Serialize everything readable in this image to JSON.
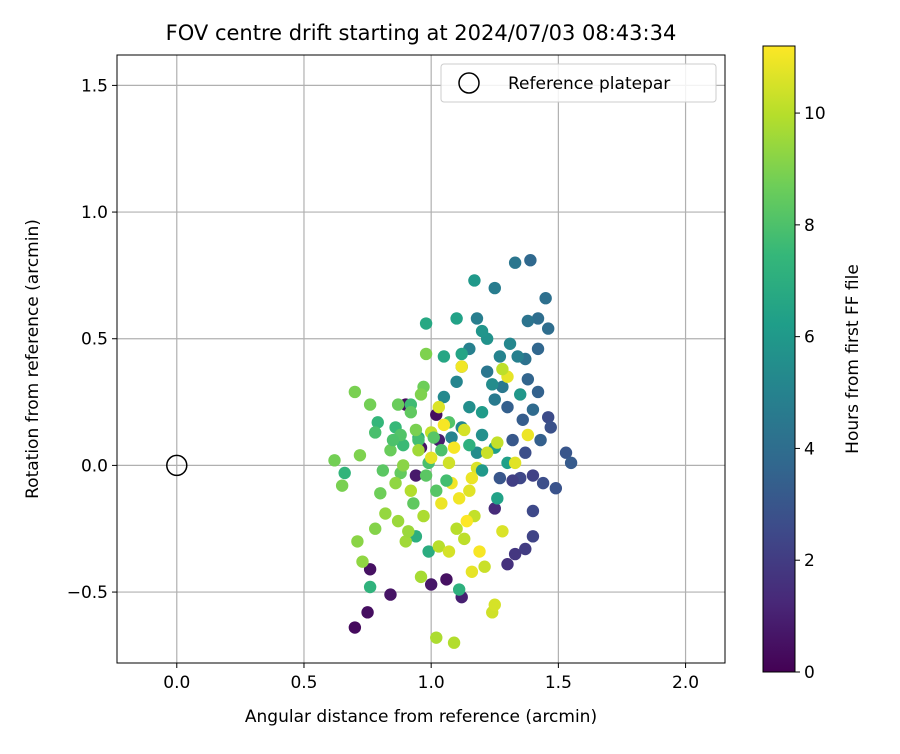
{
  "chart_data": {
    "type": "scatter",
    "title": "FOV centre drift starting at 2024/07/03 08:43:34",
    "xlabel": "Angular distance from reference (arcmin)",
    "ylabel": "Rotation from reference (arcmin)",
    "xlim": [
      -0.235,
      2.155
    ],
    "ylim": [
      -0.78,
      1.62
    ],
    "xticks": [
      0.0,
      0.5,
      1.0,
      1.5,
      2.0
    ],
    "xtick_labels": [
      "0.0",
      "0.5",
      "1.0",
      "1.5",
      "2.0"
    ],
    "yticks": [
      -0.5,
      0.0,
      0.5,
      1.0,
      1.5
    ],
    "ytick_labels": [
      "−0.5",
      "0.0",
      "0.5",
      "1.0",
      "1.5"
    ],
    "grid": true,
    "legend": {
      "label": "Reference platepar",
      "position": "top-right"
    },
    "reference_point": {
      "x": 0.0,
      "y": 0.0
    },
    "colorbar": {
      "label": "Hours from first FF file",
      "range": [
        0,
        11.2
      ],
      "ticks": [
        0,
        2,
        4,
        6,
        8,
        10
      ],
      "tick_labels": [
        "0",
        "2",
        "4",
        "6",
        "8",
        "10"
      ],
      "colormap": [
        "#440154",
        "#482878",
        "#3e4989",
        "#31688e",
        "#26828e",
        "#1f9e89",
        "#35b779",
        "#6ece58",
        "#b5de2b",
        "#fde725"
      ]
    },
    "points": [
      [
        0.7,
        -0.64,
        0.3
      ],
      [
        0.75,
        -0.58,
        0.4
      ],
      [
        0.76,
        -0.41,
        0.5
      ],
      [
        0.84,
        -0.51,
        0.6
      ],
      [
        0.9,
        0.24,
        0.3
      ],
      [
        0.94,
        -0.04,
        0.8
      ],
      [
        0.96,
        0.07,
        0.6
      ],
      [
        1.0,
        -0.47,
        0.7
      ],
      [
        1.06,
        -0.45,
        0.5
      ],
      [
        1.03,
        0.1,
        0.9
      ],
      [
        1.02,
        0.2,
        0.4
      ],
      [
        1.12,
        -0.52,
        1.0
      ],
      [
        1.25,
        -0.17,
        1.4
      ],
      [
        1.3,
        -0.39,
        1.6
      ],
      [
        1.33,
        -0.35,
        1.8
      ],
      [
        1.37,
        -0.33,
        2.0
      ],
      [
        1.4,
        -0.28,
        2.3
      ],
      [
        1.35,
        -0.05,
        2.4
      ],
      [
        1.4,
        -0.18,
        2.5
      ],
      [
        1.44,
        -0.07,
        2.7
      ],
      [
        1.49,
        -0.09,
        2.9
      ],
      [
        1.4,
        -0.04,
        2.2
      ],
      [
        1.46,
        0.19,
        2.6
      ],
      [
        1.47,
        0.15,
        2.8
      ],
      [
        1.53,
        0.05,
        3.0
      ],
      [
        1.55,
        0.01,
        3.2
      ],
      [
        1.32,
        0.1,
        3.1
      ],
      [
        1.36,
        0.18,
        3.3
      ],
      [
        1.3,
        0.23,
        3.4
      ],
      [
        1.42,
        0.29,
        3.5
      ],
      [
        1.38,
        0.34,
        3.6
      ],
      [
        1.39,
        0.81,
        3.8
      ],
      [
        1.42,
        0.46,
        3.7
      ],
      [
        1.42,
        0.58,
        4.0
      ],
      [
        1.45,
        0.66,
        4.1
      ],
      [
        1.46,
        0.54,
        4.0
      ],
      [
        1.38,
        0.57,
        4.3
      ],
      [
        1.33,
        0.8,
        4.4
      ],
      [
        1.37,
        0.42,
        4.2
      ],
      [
        1.28,
        0.31,
        4.5
      ],
      [
        1.25,
        0.26,
        4.6
      ],
      [
        1.22,
        0.37,
        4.4
      ],
      [
        1.25,
        0.7,
        4.7
      ],
      [
        1.18,
        0.58,
        4.8
      ],
      [
        1.15,
        0.46,
        4.9
      ],
      [
        1.12,
        0.39,
        5.0
      ],
      [
        1.1,
        0.33,
        5.1
      ],
      [
        1.12,
        0.15,
        5.2
      ],
      [
        1.05,
        0.27,
        5.3
      ],
      [
        1.08,
        0.11,
        5.0
      ],
      [
        1.18,
        0.05,
        5.4
      ],
      [
        1.15,
        0.23,
        5.5
      ],
      [
        1.2,
        0.12,
        5.6
      ],
      [
        1.22,
        0.5,
        5.7
      ],
      [
        1.2,
        0.53,
        5.8
      ],
      [
        1.17,
        0.73,
        6.0
      ],
      [
        1.2,
        0.21,
        6.1
      ],
      [
        1.25,
        0.07,
        6.2
      ],
      [
        1.3,
        0.01,
        6.3
      ],
      [
        1.26,
        -0.13,
        6.4
      ],
      [
        1.12,
        0.44,
        6.5
      ],
      [
        1.1,
        0.58,
        6.4
      ],
      [
        1.05,
        0.43,
        6.6
      ],
      [
        0.98,
        0.56,
        6.7
      ],
      [
        0.95,
        0.11,
        6.8
      ],
      [
        0.99,
        -0.34,
        6.9
      ],
      [
        0.94,
        -0.28,
        7.0
      ],
      [
        1.11,
        -0.49,
        7.1
      ],
      [
        0.76,
        -0.48,
        7.2
      ],
      [
        0.66,
        -0.03,
        7.3
      ],
      [
        0.79,
        0.17,
        7.4
      ],
      [
        0.86,
        0.15,
        7.5
      ],
      [
        0.89,
        0.08,
        7.6
      ],
      [
        0.92,
        0.24,
        7.7
      ],
      [
        0.95,
        0.1,
        7.8
      ],
      [
        0.99,
        0.01,
        7.9
      ],
      [
        1.04,
        0.06,
        8.0
      ],
      [
        1.07,
        0.17,
        8.1
      ],
      [
        1.02,
        -0.1,
        8.2
      ],
      [
        0.98,
        -0.04,
        8.3
      ],
      [
        0.93,
        -0.15,
        8.4
      ],
      [
        0.88,
        -0.03,
        8.5
      ],
      [
        0.84,
        0.06,
        8.6
      ],
      [
        0.8,
        -0.11,
        8.7
      ],
      [
        0.76,
        0.24,
        8.8
      ],
      [
        0.7,
        0.29,
        8.9
      ],
      [
        0.62,
        0.02,
        8.8
      ],
      [
        0.65,
        -0.08,
        8.9
      ],
      [
        0.72,
        0.04,
        9.0
      ],
      [
        0.78,
        -0.25,
        9.1
      ],
      [
        0.71,
        -0.3,
        9.2
      ],
      [
        0.73,
        -0.38,
        9.3
      ],
      [
        0.82,
        -0.19,
        9.4
      ],
      [
        0.87,
        -0.22,
        9.5
      ],
      [
        0.9,
        -0.3,
        9.6
      ],
      [
        0.96,
        -0.44,
        9.7
      ],
      [
        1.02,
        -0.68,
        9.8
      ],
      [
        1.09,
        -0.7,
        9.9
      ],
      [
        1.1,
        -0.25,
        10.0
      ],
      [
        1.13,
        -0.29,
        10.1
      ],
      [
        1.17,
        -0.2,
        10.2
      ],
      [
        1.21,
        -0.4,
        10.3
      ],
      [
        1.24,
        -0.58,
        10.4
      ],
      [
        1.25,
        -0.55,
        10.5
      ],
      [
        1.28,
        -0.26,
        10.6
      ],
      [
        1.33,
        0.01,
        10.7
      ],
      [
        1.3,
        0.35,
        10.8
      ],
      [
        1.38,
        0.12,
        10.9
      ],
      [
        1.12,
        0.39,
        11.0
      ],
      [
        1.05,
        0.16,
        11.1
      ],
      [
        1.08,
        -0.07,
        11.0
      ],
      [
        1.04,
        -0.15,
        10.9
      ],
      [
        1.0,
        0.03,
        10.8
      ],
      [
        1.15,
        -0.1,
        10.7
      ],
      [
        1.18,
        -0.01,
        10.6
      ],
      [
        1.13,
        0.14,
        10.5
      ],
      [
        1.07,
        0.01,
        10.4
      ],
      [
        1.22,
        0.05,
        10.3
      ],
      [
        1.26,
        0.09,
        10.2
      ],
      [
        1.28,
        0.38,
        10.1
      ],
      [
        0.98,
        0.44,
        9.0
      ],
      [
        0.97,
        0.31,
        8.7
      ],
      [
        0.92,
        0.21,
        8.4
      ],
      [
        0.88,
        0.12,
        8.1
      ],
      [
        0.86,
        -0.07,
        9.3
      ],
      [
        0.91,
        -0.26,
        9.5
      ],
      [
        0.97,
        -0.2,
        9.8
      ],
      [
        1.03,
        -0.32,
        10.0
      ],
      [
        1.07,
        -0.34,
        10.5
      ],
      [
        1.16,
        -0.42,
        10.8
      ],
      [
        1.19,
        -0.34,
        11.1
      ],
      [
        1.14,
        -0.22,
        11.2
      ],
      [
        1.11,
        -0.13,
        11.0
      ],
      [
        1.16,
        -0.05,
        10.9
      ],
      [
        1.09,
        0.07,
        11.1
      ],
      [
        1.03,
        0.23,
        10.6
      ],
      [
        1.0,
        0.13,
        10.2
      ],
      [
        0.95,
        0.06,
        9.6
      ],
      [
        0.92,
        -0.1,
        9.9
      ],
      [
        0.89,
        0.0,
        9.2
      ],
      [
        1.34,
        0.43,
        4.9
      ],
      [
        1.31,
        0.48,
        5.2
      ],
      [
        1.27,
        0.43,
        5.0
      ],
      [
        1.24,
        0.32,
        5.4
      ],
      [
        1.35,
        0.28,
        5.9
      ],
      [
        1.4,
        0.22,
        3.9
      ],
      [
        1.43,
        0.1,
        3.4
      ],
      [
        1.37,
        0.05,
        2.7
      ],
      [
        1.32,
        -0.06,
        2.1
      ],
      [
        1.27,
        -0.05,
        3.0
      ],
      [
        1.2,
        -0.02,
        6.0
      ],
      [
        1.15,
        0.08,
        7.1
      ],
      [
        1.06,
        -0.06,
        7.8
      ],
      [
        1.01,
        0.11,
        8.2
      ],
      [
        0.94,
        0.14,
        8.9
      ],
      [
        0.85,
        0.1,
        8.0
      ],
      [
        0.81,
        -0.02,
        8.3
      ],
      [
        0.78,
        0.13,
        7.9
      ],
      [
        0.87,
        0.24,
        8.6
      ],
      [
        0.96,
        0.28,
        9.0
      ]
    ]
  }
}
